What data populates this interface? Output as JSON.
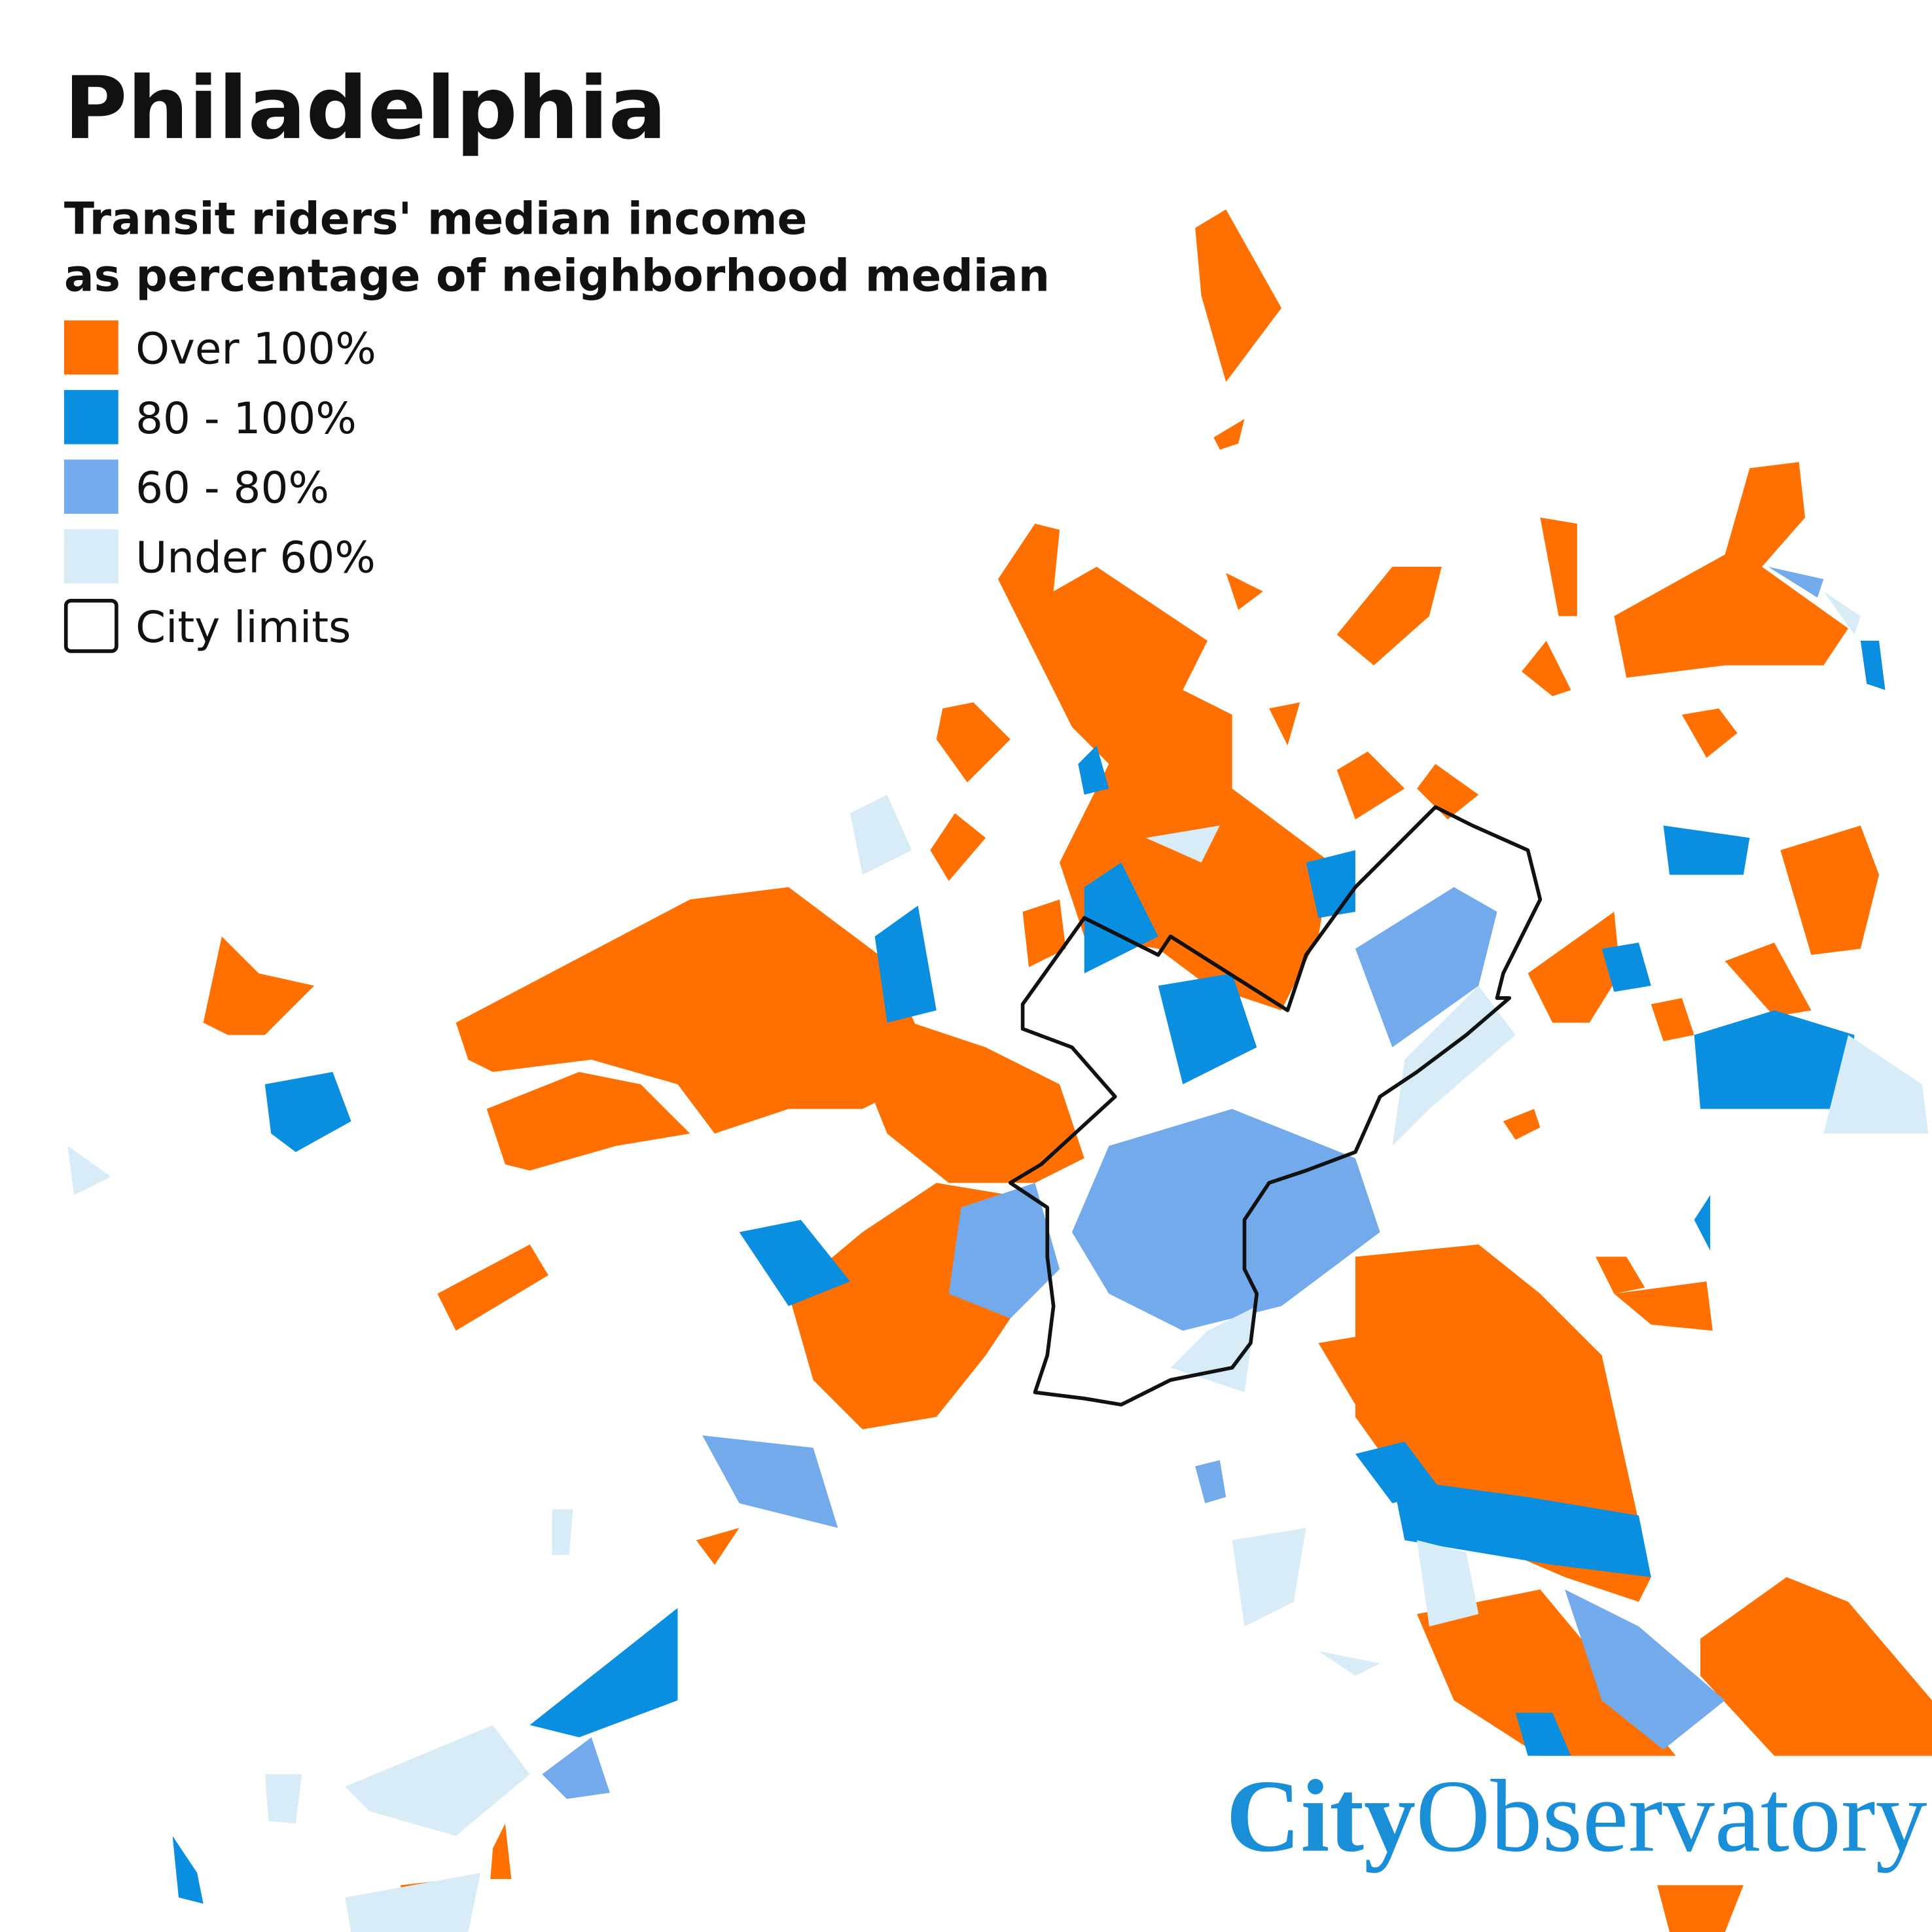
{
  "title": "Philadelphia",
  "subtitle": [
    "Transit riders' median income",
    "as percentage of neighborhood median"
  ],
  "legend": [
    {
      "label": "Over 100%",
      "color": "#ff7000"
    },
    {
      "label": "80 - 100%",
      "color": "#0a8ee0"
    },
    {
      "label": "60 - 80%",
      "color": "#72aaec"
    },
    {
      "label": "Under 60%",
      "color": "#d8ecf8"
    }
  ],
  "city_limits": {
    "label": "City limits",
    "color": "#111111"
  },
  "logo": {
    "bold": "City",
    "regular": "Observatory"
  }
}
